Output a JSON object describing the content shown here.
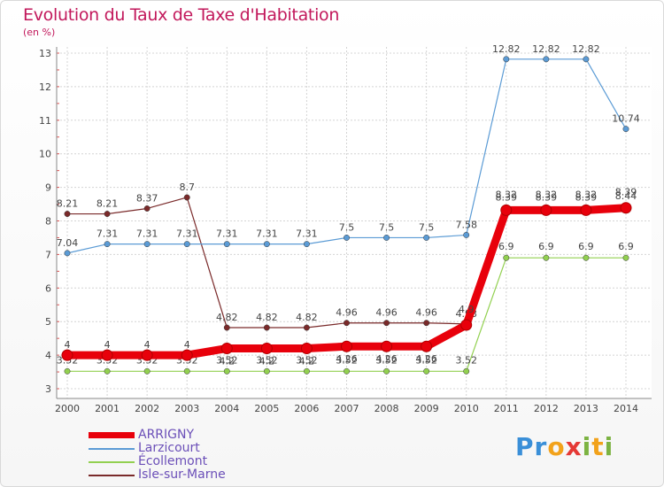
{
  "title": "Evolution du Taux de Taxe d'Habitation",
  "subtitle": "(en %)",
  "logo": {
    "text": "Proxiti",
    "letters": [
      "P",
      "r",
      "o",
      "x",
      "i",
      "t",
      "i"
    ],
    "colors": [
      "#3a8fd8",
      "#3a8fd8",
      "#f2a21b",
      "#e53935",
      "#7cb342",
      "#f2a21b",
      "#7cb342"
    ]
  },
  "chart_data": {
    "type": "line",
    "title": "Evolution du Taux de Taxe d'Habitation",
    "ylabel": "(en %)",
    "x": [
      2000,
      2001,
      2002,
      2003,
      2004,
      2005,
      2006,
      2007,
      2008,
      2009,
      2010,
      2011,
      2012,
      2013,
      2014
    ],
    "ylim": [
      3,
      13
    ],
    "yticks": [
      3,
      4,
      5,
      6,
      7,
      8,
      9,
      10,
      11,
      12,
      13
    ],
    "grid": true,
    "legend_position": "bottom-left",
    "series": [
      {
        "name": "Isle-sur-Marne",
        "color": "#7a2a2a",
        "values": [
          8.21,
          8.21,
          8.37,
          8.7,
          4.82,
          4.82,
          4.82,
          4.96,
          4.96,
          4.96,
          4.93,
          8.39,
          8.39,
          8.39,
          8.44
        ]
      },
      {
        "name": "Larzicourt",
        "color": "#5b9bd5",
        "values": [
          7.04,
          7.31,
          7.31,
          7.31,
          7.31,
          7.31,
          7.31,
          7.5,
          7.5,
          7.5,
          7.58,
          12.82,
          12.82,
          12.82,
          10.74
        ]
      },
      {
        "name": "Ecollemont",
        "color": "#92d050",
        "values": [
          3.52,
          3.52,
          3.52,
          3.52,
          3.52,
          3.52,
          3.52,
          3.52,
          3.52,
          3.52,
          3.52,
          6.9,
          6.9,
          6.9,
          6.9
        ]
      },
      {
        "name": "ARRIGNY",
        "color": "#e8000b",
        "values": [
          4,
          4,
          4,
          4,
          4.2,
          4.2,
          4.2,
          4.26,
          4.26,
          4.26,
          4.9,
          8.32,
          8.32,
          8.32,
          8.39
        ]
      }
    ],
    "legend_order": [
      "ARRIGNY",
      "Larzicourt",
      "Écollemont",
      "Isle-sur-Marne"
    ],
    "data_labels": [
      {
        "series": "Isle-sur-Marne",
        "labels": [
          "8.21",
          "8.21",
          "8.37",
          "8.7",
          "4.82",
          "4.82",
          "4.82",
          "4.96",
          "4.96",
          "4.96",
          "4.93",
          "8.39",
          "8.39",
          "8.39",
          "8.44"
        ]
      },
      {
        "series": "Larzicourt",
        "labels": [
          "7.04",
          "7.31",
          "7.31",
          "7.31",
          "7.31",
          "7.31",
          "7.31",
          "7.5",
          "7.5",
          "7.5",
          "7.58",
          "12.82",
          "12.82",
          "12.82",
          "10.74"
        ]
      },
      {
        "series": "Ecollemont",
        "labels": [
          "3.52",
          "3.52",
          "3.52",
          "3.52",
          "3.52",
          "3.52",
          "3.52",
          "3.52",
          "3.52",
          "3.52",
          "3.52",
          "6.9",
          "6.9",
          "6.9",
          "6.9"
        ]
      },
      {
        "series": "ARRIGNY",
        "labels": [
          "4",
          "4",
          "4",
          "4",
          "4.2",
          "4.2",
          "4.2",
          "4.26",
          "4.26",
          "4.26",
          "4.9",
          "8.32",
          "8.32",
          "8.32",
          "8.39"
        ]
      }
    ]
  }
}
